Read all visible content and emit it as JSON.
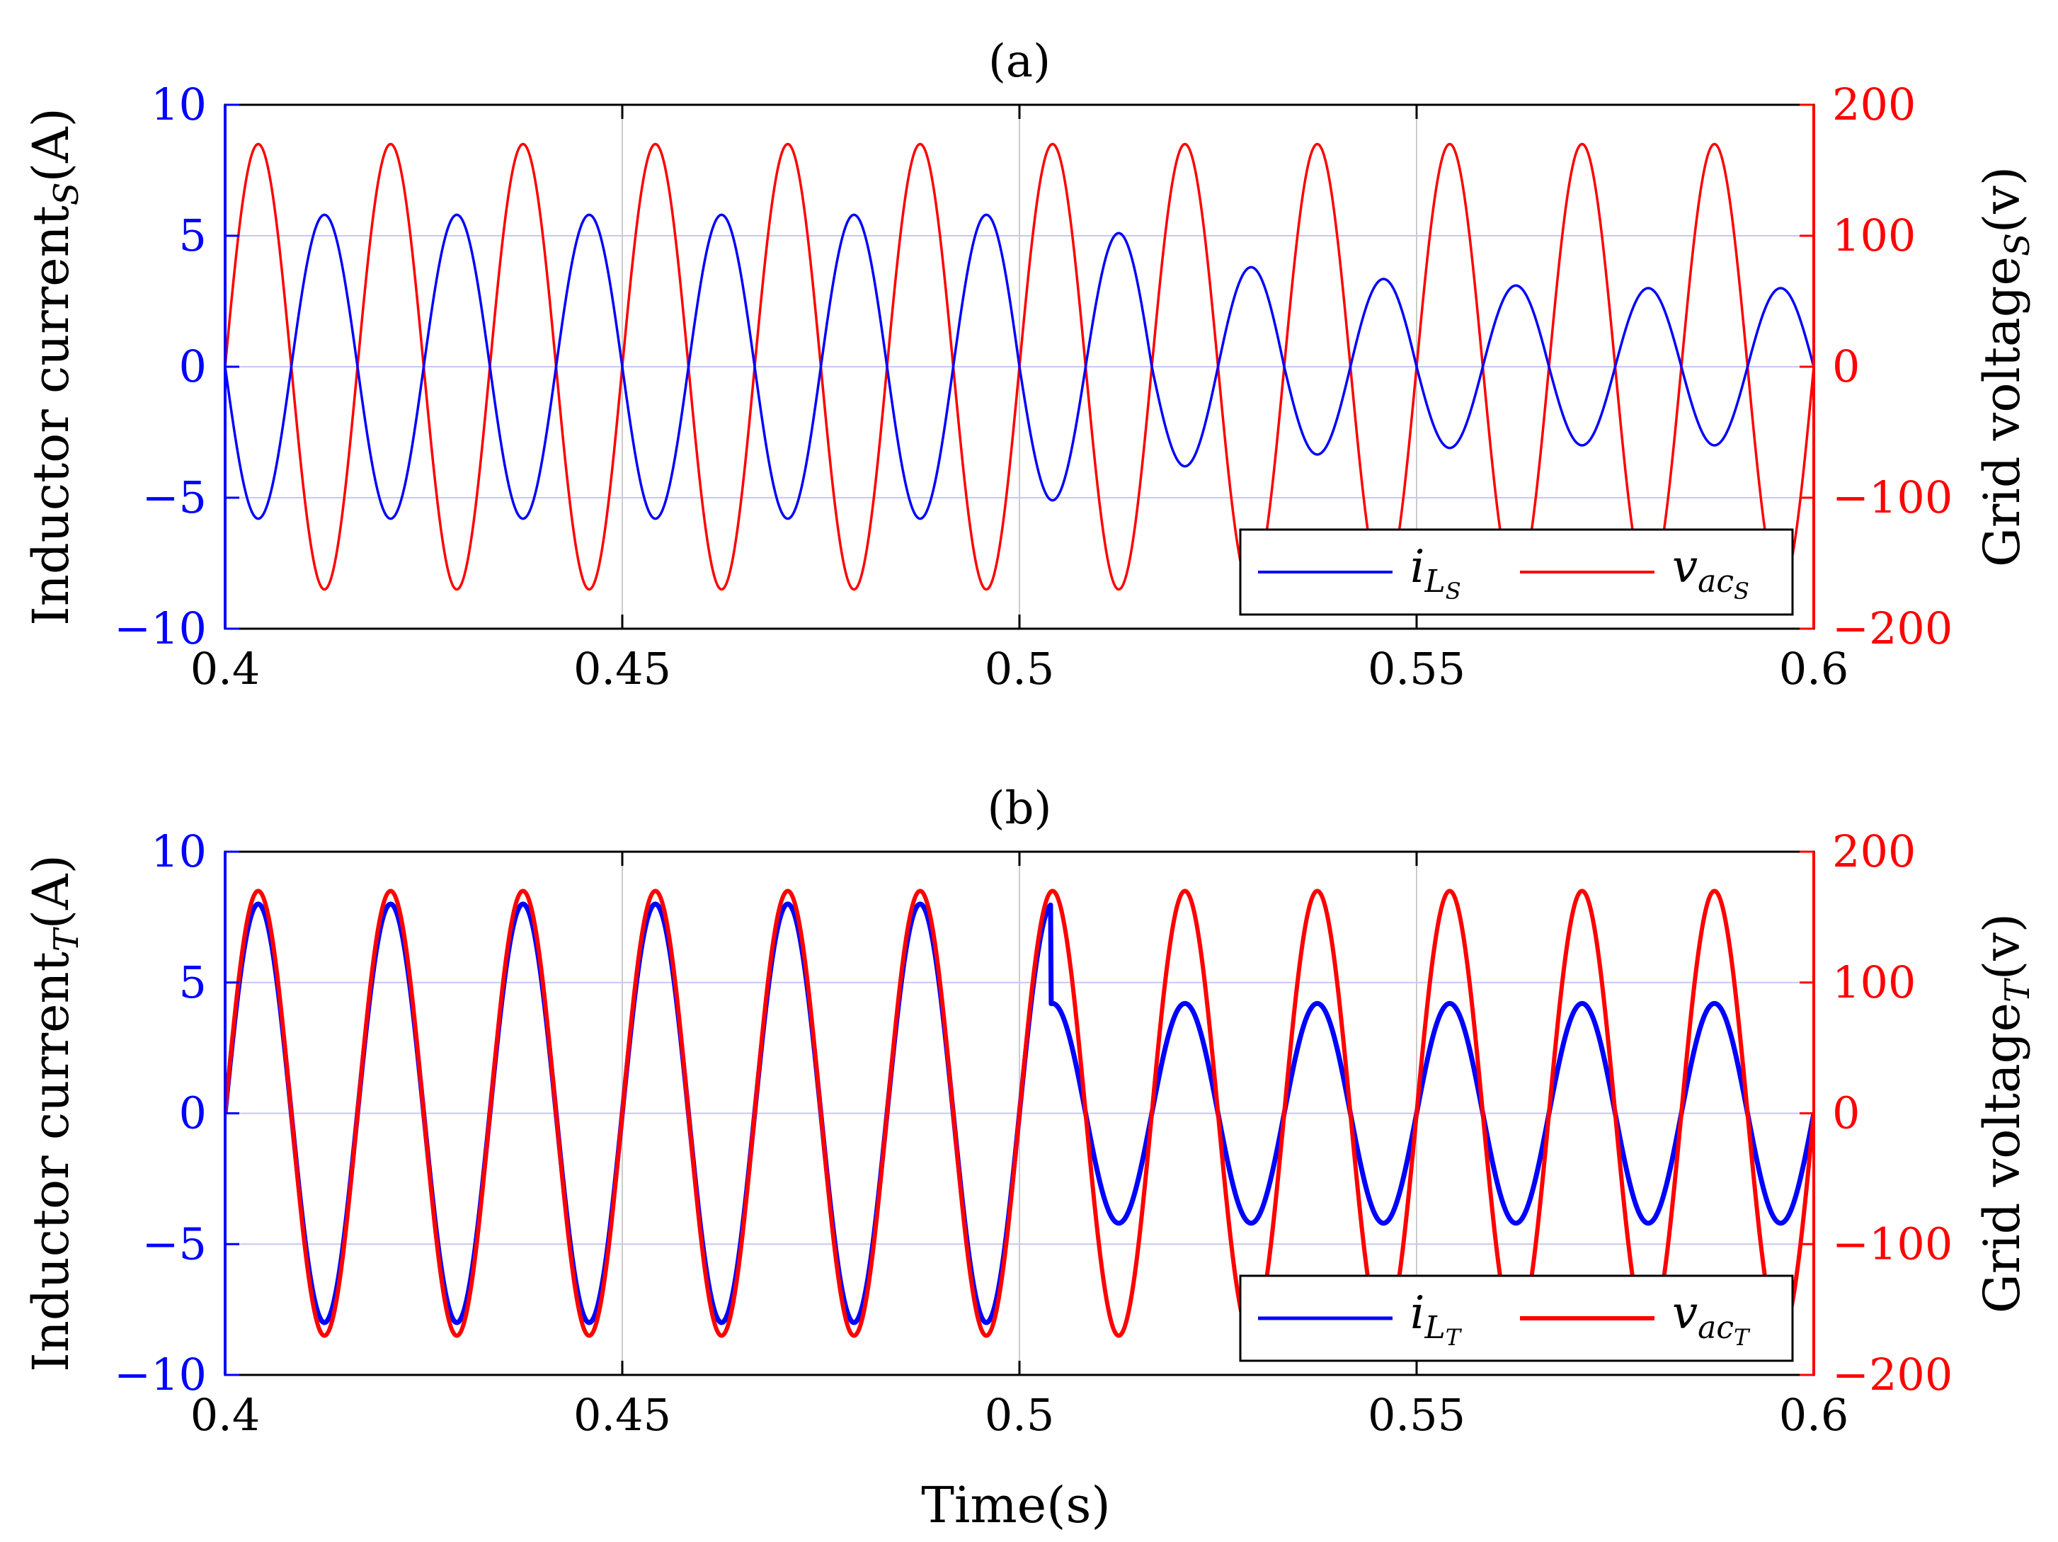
{
  "colors": {
    "left_axis": "#0000ff",
    "right_axis": "#ff0000",
    "grid": "#cccccc",
    "gridline_zero": "#c8c8f0",
    "frame": "#000000"
  },
  "xlabel": "Time(s)",
  "chart_data": [
    {
      "type": "line",
      "title": "(a)",
      "xlabel": "",
      "ylabel_left": "Inductor current",
      "ylabel_left_sub": "S",
      "ylabel_left_unit": "(A)",
      "ylabel_right": "Grid voltage",
      "ylabel_right_sub": "S",
      "ylabel_right_unit": "(v)",
      "xlim": [
        0.4,
        0.6
      ],
      "ylim_left": [
        -10,
        10
      ],
      "ylim_right": [
        -200,
        200
      ],
      "x_ticks": [
        "0.4",
        "0.45",
        "0.5",
        "0.55",
        "0.6"
      ],
      "left_ticks": [
        "10",
        "5",
        "0",
        "−5",
        "−10"
      ],
      "right_ticks": [
        "200",
        "100",
        "0",
        "−100",
        "−200"
      ],
      "grid": true,
      "legend_location": "bottom-right",
      "series": [
        {
          "name": "i_LS",
          "legend_main": "i",
          "legend_sub": "L",
          "legend_subsub": "S",
          "axis": "left",
          "color": "#0000ff",
          "frequency_hz": 60,
          "phase_deg": 180,
          "amplitude_before": 5.8,
          "amplitude_after": [
            5.1,
            3.8,
            3.35,
            3.1,
            3.0,
            3.0
          ],
          "step_time": 0.5
        },
        {
          "name": "v_acS",
          "legend_main": "v",
          "legend_sub": "ac",
          "legend_subsub": "S",
          "axis": "right",
          "color": "#ff0000",
          "frequency_hz": 60,
          "phase_deg": 0,
          "amplitude": 170
        }
      ]
    },
    {
      "type": "line",
      "title": "(b)",
      "xlabel": "Time(s)",
      "ylabel_left": "Inductor current",
      "ylabel_left_sub": "T",
      "ylabel_left_unit": "(A)",
      "ylabel_right": "Grid voltage",
      "ylabel_right_sub": "T",
      "ylabel_right_unit": "(v)",
      "xlim": [
        0.4,
        0.6
      ],
      "ylim_left": [
        -10,
        10
      ],
      "ylim_right": [
        -200,
        200
      ],
      "x_ticks": [
        "0.4",
        "0.45",
        "0.5",
        "0.55",
        "0.6"
      ],
      "left_ticks": [
        "10",
        "5",
        "0",
        "−5",
        "−10"
      ],
      "right_ticks": [
        "200",
        "100",
        "0",
        "−100",
        "−200"
      ],
      "grid": true,
      "legend_location": "bottom-right",
      "series": [
        {
          "name": "i_LT",
          "legend_main": "i",
          "legend_sub": "L",
          "legend_subsub": "T",
          "axis": "left",
          "color": "#0000ff",
          "frequency_hz": 60,
          "phase_deg": 0,
          "amplitude_before": 8.0,
          "amplitude_after": 4.2,
          "step_time": 0.504
        },
        {
          "name": "v_acT",
          "legend_main": "v",
          "legend_sub": "ac",
          "legend_subsub": "T",
          "axis": "right",
          "color": "#ff0000",
          "frequency_hz": 60,
          "phase_deg": 0,
          "amplitude": 170
        }
      ]
    }
  ]
}
